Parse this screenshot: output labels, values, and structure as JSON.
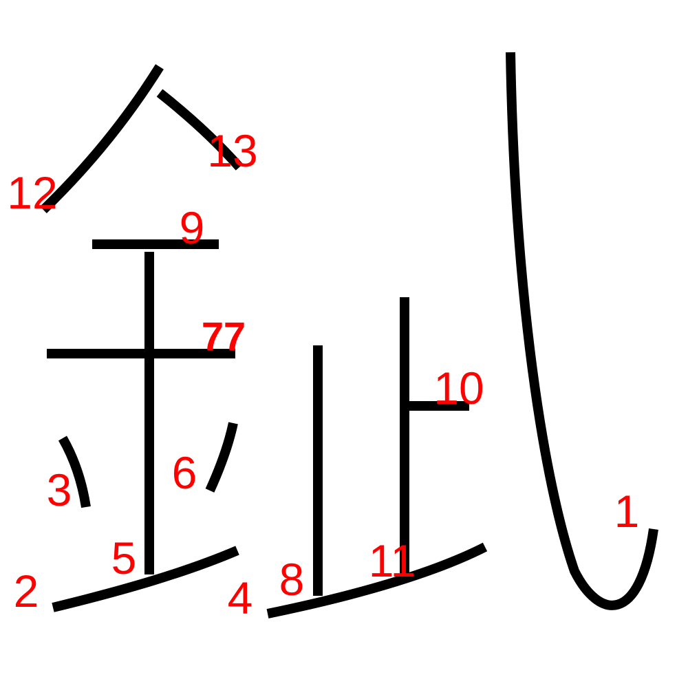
{
  "colors": {
    "stroke": "#000000",
    "number": "#ff0000",
    "background": "#ffffff"
  },
  "stroke_numbers": {
    "n1": "1",
    "n2": "2",
    "n3": "3",
    "n4": "4",
    "n5": "5",
    "n6": "6",
    "n8": "8",
    "n9": "9",
    "n10": "10",
    "n11": "11",
    "n12": "12",
    "n13": "13",
    "overlap": "7",
    "overlap_b": "7"
  }
}
